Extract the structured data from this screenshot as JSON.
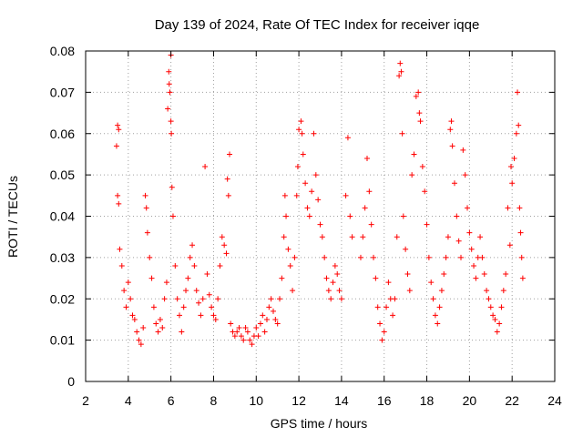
{
  "chart_data": {
    "type": "scatter",
    "title": "Day 139 of 2024, Rate Of TEC Index for receiver iqqe",
    "xlabel": "GPS time / hours",
    "ylabel": "ROTI / TECUs",
    "xlim": [
      2,
      24
    ],
    "ylim": [
      0,
      0.08
    ],
    "xticks": [
      2,
      4,
      6,
      8,
      10,
      12,
      14,
      16,
      18,
      20,
      22,
      24
    ],
    "yticks": [
      "0",
      "0.01",
      "0.02",
      "0.03",
      "0.04",
      "0.05",
      "0.06",
      "0.07",
      "0.08"
    ],
    "grid": true,
    "marker": "+",
    "color": "#ff0000",
    "series": [
      {
        "name": "ROTI",
        "points": [
          [
            3.45,
            0.057
          ],
          [
            3.5,
            0.062
          ],
          [
            3.55,
            0.061
          ],
          [
            3.5,
            0.045
          ],
          [
            3.55,
            0.043
          ],
          [
            3.6,
            0.032
          ],
          [
            3.7,
            0.028
          ],
          [
            3.8,
            0.022
          ],
          [
            3.9,
            0.018
          ],
          [
            4.0,
            0.024
          ],
          [
            4.1,
            0.02
          ],
          [
            4.2,
            0.016
          ],
          [
            4.3,
            0.015
          ],
          [
            4.4,
            0.012
          ],
          [
            4.5,
            0.01
          ],
          [
            4.6,
            0.009
          ],
          [
            4.7,
            0.013
          ],
          [
            4.8,
            0.045
          ],
          [
            4.85,
            0.042
          ],
          [
            4.9,
            0.036
          ],
          [
            5.0,
            0.03
          ],
          [
            5.1,
            0.025
          ],
          [
            5.2,
            0.018
          ],
          [
            5.3,
            0.014
          ],
          [
            5.4,
            0.012
          ],
          [
            5.5,
            0.015
          ],
          [
            5.6,
            0.013
          ],
          [
            5.7,
            0.02
          ],
          [
            5.8,
            0.024
          ],
          [
            5.85,
            0.066
          ],
          [
            5.9,
            0.075
          ],
          [
            5.92,
            0.072
          ],
          [
            5.95,
            0.07
          ],
          [
            6.0,
            0.063
          ],
          [
            6.0,
            0.079
          ],
          [
            6.02,
            0.06
          ],
          [
            6.05,
            0.047
          ],
          [
            6.1,
            0.04
          ],
          [
            6.2,
            0.028
          ],
          [
            6.3,
            0.02
          ],
          [
            6.4,
            0.016
          ],
          [
            6.5,
            0.012
          ],
          [
            6.6,
            0.018
          ],
          [
            6.7,
            0.022
          ],
          [
            6.8,
            0.025
          ],
          [
            6.9,
            0.03
          ],
          [
            7.0,
            0.033
          ],
          [
            7.1,
            0.028
          ],
          [
            7.2,
            0.022
          ],
          [
            7.3,
            0.019
          ],
          [
            7.4,
            0.016
          ],
          [
            7.5,
            0.02
          ],
          [
            7.6,
            0.052
          ],
          [
            7.7,
            0.026
          ],
          [
            7.8,
            0.021
          ],
          [
            7.9,
            0.018
          ],
          [
            8.0,
            0.016
          ],
          [
            8.1,
            0.015
          ],
          [
            8.2,
            0.02
          ],
          [
            8.3,
            0.028
          ],
          [
            8.4,
            0.035
          ],
          [
            8.5,
            0.033
          ],
          [
            8.6,
            0.031
          ],
          [
            8.65,
            0.049
          ],
          [
            8.7,
            0.045
          ],
          [
            8.75,
            0.055
          ],
          [
            8.8,
            0.014
          ],
          [
            8.9,
            0.012
          ],
          [
            9.0,
            0.011
          ],
          [
            9.1,
            0.012
          ],
          [
            9.2,
            0.013
          ],
          [
            9.3,
            0.011
          ],
          [
            9.4,
            0.01
          ],
          [
            9.5,
            0.013
          ],
          [
            9.6,
            0.012
          ],
          [
            9.7,
            0.01
          ],
          [
            9.8,
            0.009
          ],
          [
            9.9,
            0.011
          ],
          [
            10.0,
            0.013
          ],
          [
            10.1,
            0.011
          ],
          [
            10.2,
            0.014
          ],
          [
            10.3,
            0.016
          ],
          [
            10.4,
            0.012
          ],
          [
            10.5,
            0.015
          ],
          [
            10.6,
            0.018
          ],
          [
            10.7,
            0.02
          ],
          [
            10.8,
            0.017
          ],
          [
            10.9,
            0.015
          ],
          [
            11.0,
            0.014
          ],
          [
            11.1,
            0.02
          ],
          [
            11.2,
            0.025
          ],
          [
            11.3,
            0.035
          ],
          [
            11.35,
            0.045
          ],
          [
            11.4,
            0.04
          ],
          [
            11.5,
            0.032
          ],
          [
            11.6,
            0.028
          ],
          [
            11.7,
            0.022
          ],
          [
            11.8,
            0.03
          ],
          [
            11.9,
            0.045
          ],
          [
            11.95,
            0.052
          ],
          [
            12.0,
            0.061
          ],
          [
            12.1,
            0.063
          ],
          [
            12.15,
            0.06
          ],
          [
            12.2,
            0.055
          ],
          [
            12.3,
            0.048
          ],
          [
            12.4,
            0.042
          ],
          [
            12.5,
            0.04
          ],
          [
            12.6,
            0.046
          ],
          [
            12.7,
            0.06
          ],
          [
            12.8,
            0.05
          ],
          [
            12.9,
            0.044
          ],
          [
            13.0,
            0.038
          ],
          [
            13.1,
            0.035
          ],
          [
            13.2,
            0.03
          ],
          [
            13.3,
            0.025
          ],
          [
            13.4,
            0.022
          ],
          [
            13.5,
            0.02
          ],
          [
            13.6,
            0.024
          ],
          [
            13.7,
            0.028
          ],
          [
            13.8,
            0.026
          ],
          [
            13.9,
            0.022
          ],
          [
            14.0,
            0.02
          ],
          [
            14.2,
            0.045
          ],
          [
            14.3,
            0.059
          ],
          [
            14.4,
            0.04
          ],
          [
            14.5,
            0.035
          ],
          [
            14.9,
            0.03
          ],
          [
            15.0,
            0.035
          ],
          [
            15.1,
            0.042
          ],
          [
            15.2,
            0.054
          ],
          [
            15.3,
            0.046
          ],
          [
            15.4,
            0.038
          ],
          [
            15.5,
            0.03
          ],
          [
            15.6,
            0.025
          ],
          [
            15.7,
            0.018
          ],
          [
            15.8,
            0.014
          ],
          [
            15.9,
            0.01
          ],
          [
            16.0,
            0.012
          ],
          [
            16.1,
            0.018
          ],
          [
            16.2,
            0.024
          ],
          [
            16.3,
            0.02
          ],
          [
            16.4,
            0.016
          ],
          [
            16.5,
            0.02
          ],
          [
            16.6,
            0.035
          ],
          [
            16.7,
            0.074
          ],
          [
            16.75,
            0.077
          ],
          [
            16.8,
            0.075
          ],
          [
            16.85,
            0.06
          ],
          [
            16.9,
            0.04
          ],
          [
            17.0,
            0.032
          ],
          [
            17.1,
            0.026
          ],
          [
            17.2,
            0.022
          ],
          [
            17.3,
            0.05
          ],
          [
            17.4,
            0.055
          ],
          [
            17.5,
            0.069
          ],
          [
            17.6,
            0.07
          ],
          [
            17.65,
            0.065
          ],
          [
            17.7,
            0.063
          ],
          [
            17.8,
            0.052
          ],
          [
            17.9,
            0.046
          ],
          [
            18.0,
            0.038
          ],
          [
            18.1,
            0.03
          ],
          [
            18.2,
            0.024
          ],
          [
            18.3,
            0.02
          ],
          [
            18.4,
            0.016
          ],
          [
            18.5,
            0.014
          ],
          [
            18.6,
            0.018
          ],
          [
            18.7,
            0.022
          ],
          [
            18.8,
            0.026
          ],
          [
            18.9,
            0.03
          ],
          [
            19.0,
            0.035
          ],
          [
            19.1,
            0.061
          ],
          [
            19.15,
            0.063
          ],
          [
            19.2,
            0.057
          ],
          [
            19.3,
            0.048
          ],
          [
            19.4,
            0.04
          ],
          [
            19.5,
            0.034
          ],
          [
            19.6,
            0.03
          ],
          [
            19.7,
            0.056
          ],
          [
            19.8,
            0.05
          ],
          [
            19.9,
            0.042
          ],
          [
            20.0,
            0.036
          ],
          [
            20.1,
            0.032
          ],
          [
            20.2,
            0.028
          ],
          [
            20.3,
            0.025
          ],
          [
            20.4,
            0.03
          ],
          [
            20.5,
            0.035
          ],
          [
            20.6,
            0.03
          ],
          [
            20.7,
            0.026
          ],
          [
            20.8,
            0.022
          ],
          [
            20.9,
            0.02
          ],
          [
            21.0,
            0.018
          ],
          [
            21.1,
            0.016
          ],
          [
            21.2,
            0.015
          ],
          [
            21.3,
            0.012
          ],
          [
            21.4,
            0.014
          ],
          [
            21.5,
            0.018
          ],
          [
            21.6,
            0.022
          ],
          [
            21.7,
            0.026
          ],
          [
            21.8,
            0.042
          ],
          [
            21.9,
            0.033
          ],
          [
            21.95,
            0.052
          ],
          [
            22.0,
            0.048
          ],
          [
            22.1,
            0.054
          ],
          [
            22.2,
            0.06
          ],
          [
            22.25,
            0.07
          ],
          [
            22.3,
            0.062
          ],
          [
            22.35,
            0.042
          ],
          [
            22.4,
            0.036
          ],
          [
            22.45,
            0.03
          ],
          [
            22.5,
            0.025
          ]
        ]
      }
    ]
  }
}
